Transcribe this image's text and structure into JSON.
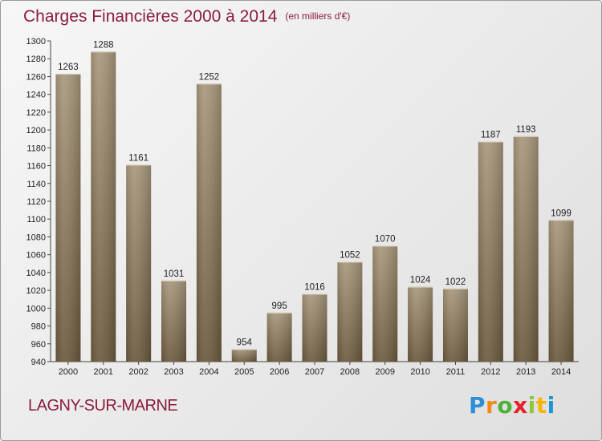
{
  "title": "Charges Financières 2000 à 2014",
  "subtitle": "(en milliers d'€)",
  "city": "LAGNY-SUR-MARNE",
  "logo": {
    "text": "Proxiti"
  },
  "colors": {
    "title": "#8b1c3c",
    "bar_top": "#a8987c",
    "bar_bottom": "#6b5a3e"
  },
  "chart_data": {
    "type": "bar",
    "categories": [
      "2000",
      "2001",
      "2002",
      "2003",
      "2004",
      "2005",
      "2006",
      "2007",
      "2008",
      "2009",
      "2010",
      "2011",
      "2012",
      "2013",
      "2014"
    ],
    "values": [
      1263,
      1288,
      1161,
      1031,
      1252,
      954,
      995,
      1016,
      1052,
      1070,
      1024,
      1022,
      1187,
      1193,
      1099
    ],
    "ylim": [
      940,
      1300
    ],
    "yticks": [
      940,
      960,
      980,
      1000,
      1020,
      1040,
      1060,
      1080,
      1100,
      1120,
      1140,
      1160,
      1180,
      1200,
      1220,
      1240,
      1260,
      1280,
      1300
    ],
    "grid": false,
    "legend": "none"
  }
}
